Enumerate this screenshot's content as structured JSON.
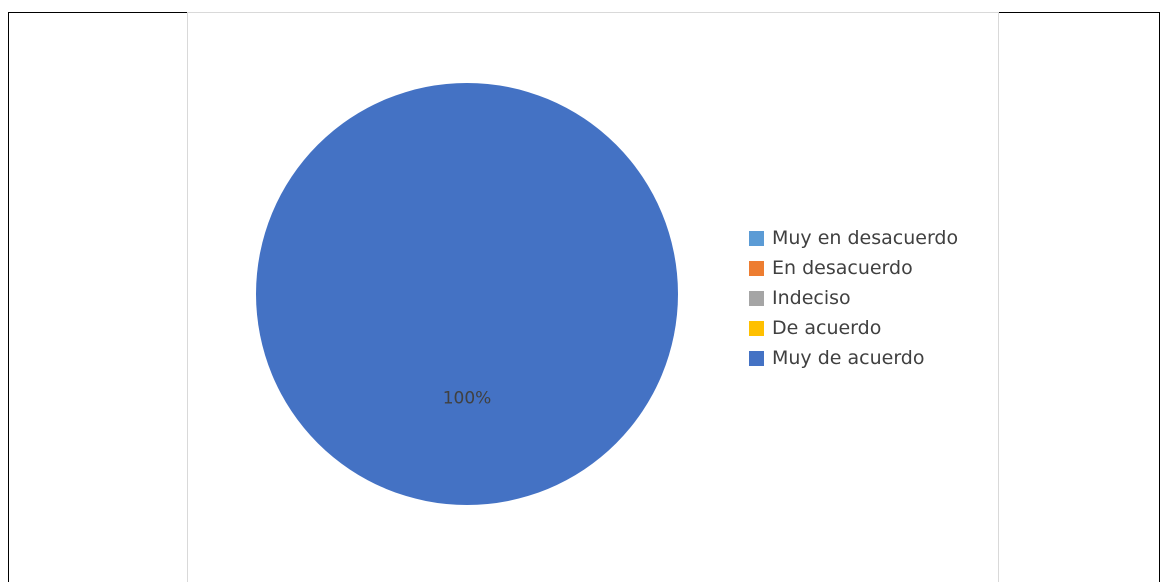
{
  "chart_data": {
    "type": "pie",
    "categories": [
      "Muy en desacuerdo",
      "En desacuerdo",
      "Indeciso",
      "De acuerdo",
      "Muy de acuerdo"
    ],
    "values": [
      0,
      0,
      0,
      0,
      100
    ],
    "colors": [
      "#5b9bd5",
      "#ed7d31",
      "#a5a5a5",
      "#ffc000",
      "#4472c4"
    ],
    "data_labels": [
      "",
      "",
      "",
      "",
      "100%"
    ],
    "legend_position": "right"
  }
}
